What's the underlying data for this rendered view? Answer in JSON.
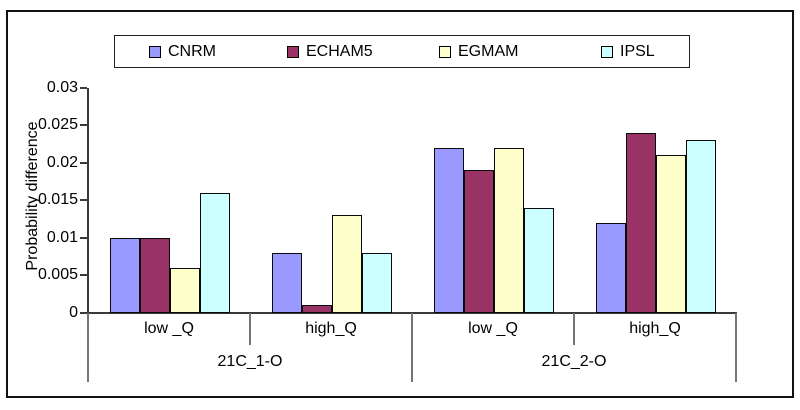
{
  "figure": {
    "background": "#ffffff",
    "frame_border_color": "#111111"
  },
  "legend": {
    "position": "top",
    "items": [
      {
        "label": "CNRM",
        "color": "#9999FF"
      },
      {
        "label": "ECHAM5",
        "color": "#993366"
      },
      {
        "label": "EGMAM",
        "color": "#FFFFCC"
      },
      {
        "label": "IPSL",
        "color": "#CCFFFF"
      }
    ]
  },
  "y_axis": {
    "title": "Probability difference",
    "tick_labels": [
      "0",
      "0.005",
      "0.01",
      "0.015",
      "0.02",
      "0.025",
      "0.03"
    ]
  },
  "x_axis": {
    "category_labels": [
      "low _Q",
      "high_Q",
      "low _Q",
      "high_Q"
    ],
    "group_labels": [
      "21C_1-O",
      "21C_2-O"
    ]
  },
  "chart_data": {
    "type": "bar",
    "title": "",
    "xlabel": "",
    "ylabel": "Probability difference",
    "ylim": [
      0,
      0.03
    ],
    "yticks": [
      0,
      0.005,
      0.01,
      0.015,
      0.02,
      0.025,
      0.03
    ],
    "categories": [
      "low _Q",
      "high_Q",
      "low _Q",
      "high_Q"
    ],
    "group_labels": [
      "21C_1-O",
      "21C_2-O"
    ],
    "category_groups": [
      {
        "group": "21C_1-O",
        "categories": [
          "low _Q",
          "high_Q"
        ]
      },
      {
        "group": "21C_2-O",
        "categories": [
          "low _Q",
          "high_Q"
        ]
      }
    ],
    "series": [
      {
        "name": "CNRM",
        "color": "#9999FF",
        "values": [
          0.01,
          0.008,
          0.022,
          0.012
        ]
      },
      {
        "name": "ECHAM5",
        "color": "#993366",
        "values": [
          0.01,
          0.001,
          0.019,
          0.024
        ]
      },
      {
        "name": "EGMAM",
        "color": "#FFFFCC",
        "values": [
          0.006,
          0.013,
          0.022,
          0.021
        ]
      },
      {
        "name": "IPSL",
        "color": "#CCFFFF",
        "values": [
          0.016,
          0.008,
          0.014,
          0.023
        ]
      }
    ],
    "legend_position": "top",
    "grid": false,
    "bar_border_color": "#000000"
  }
}
